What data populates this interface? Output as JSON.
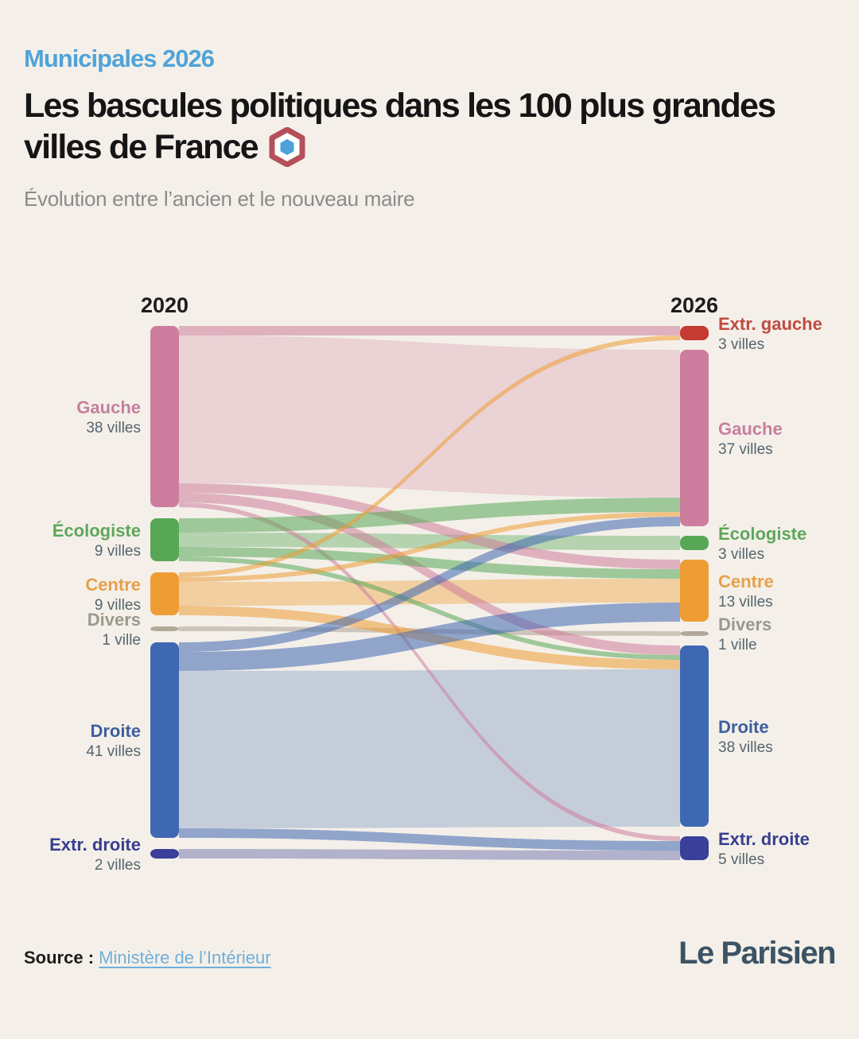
{
  "header": {
    "kicker": "Municipales 2026",
    "title_line1": "Les bascules politiques dans les 100 plus grandes",
    "title_line2": "villes de France",
    "subtitle": "Évolution entre l’ancien et le nouveau maire"
  },
  "footer": {
    "source_label": "Source :",
    "source_link": "Ministère de l’Intérieur",
    "brand": "Le Parisien"
  },
  "colors": {
    "background": "#f4f0e9",
    "kicker_blue": "#51a3d8",
    "title_black": "#151515",
    "subtitle_gray": "#8b8b8b",
    "count_gray": "#55656e",
    "year_label": "#1d1d1d",
    "link_blue": "#6fafda",
    "brand_slate": "#3c5365",
    "logo_hex_red": "#b5505a",
    "logo_hex_blue": "#4ba1d8"
  },
  "chart_data": {
    "type": "sankey",
    "title": "Les bascules politiques dans les 100 plus grandes villes de France",
    "subtitle": "Évolution entre l’ancien et le nouveau maire",
    "column_labels": [
      "2020",
      "2026"
    ],
    "unit": "villes",
    "left_nodes": [
      {
        "id": "gauche",
        "label": "Gauche",
        "count_label": "38 villes",
        "value": 38,
        "color": "#cd7d9d",
        "label_color": "#c5809e"
      },
      {
        "id": "ecologiste",
        "label": "Écologiste",
        "count_label": "9 villes",
        "value": 9,
        "color": "#57a757",
        "label_color": "#5ea75c"
      },
      {
        "id": "centre",
        "label": "Centre",
        "count_label": "9 villes",
        "value": 9,
        "color": "#ee9d35",
        "label_color": "#e8a04b"
      },
      {
        "id": "divers",
        "label": "Divers",
        "count_label": "1 ville",
        "value": 1,
        "color": "#b2a899",
        "label_color": "#9b988d"
      },
      {
        "id": "droite",
        "label": "Droite",
        "count_label": "41 villes",
        "value": 41,
        "color": "#3f68b3",
        "label_color": "#3e5f9e"
      },
      {
        "id": "extr_droite",
        "label": "Extr. droite",
        "count_label": "2 villes",
        "value": 2,
        "color": "#3a3f99",
        "label_color": "#383f8f"
      }
    ],
    "right_nodes": [
      {
        "id": "extr_gauche",
        "label": "Extr. gauche",
        "count_label": "3 villes",
        "value": 3,
        "color": "#c53a31",
        "label_color": "#c04a42"
      },
      {
        "id": "gauche",
        "label": "Gauche",
        "count_label": "37 villes",
        "value": 37,
        "color": "#cd7d9d",
        "label_color": "#c5809e"
      },
      {
        "id": "ecologiste",
        "label": "Écologiste",
        "count_label": "3 villes",
        "value": 3,
        "color": "#57a757",
        "label_color": "#5ea75c"
      },
      {
        "id": "centre",
        "label": "Centre",
        "count_label": "13 villes",
        "value": 13,
        "color": "#ee9d35",
        "label_color": "#e8a04b"
      },
      {
        "id": "divers",
        "label": "Divers",
        "count_label": "1 ville",
        "value": 1,
        "color": "#b2a899",
        "label_color": "#9b988d"
      },
      {
        "id": "droite",
        "label": "Droite",
        "count_label": "38 villes",
        "value": 38,
        "color": "#3f68b3",
        "label_color": "#3e5f9e"
      },
      {
        "id": "extr_droite",
        "label": "Extr. droite",
        "count_label": "5 villes",
        "value": 5,
        "color": "#3a3f99",
        "label_color": "#383f8f"
      }
    ],
    "flows": [
      {
        "source": "gauche",
        "target": "extr_gauche",
        "value": 2
      },
      {
        "source": "gauche",
        "target": "gauche",
        "value": 31
      },
      {
        "source": "gauche",
        "target": "centre",
        "value": 2
      },
      {
        "source": "gauche",
        "target": "droite",
        "value": 2
      },
      {
        "source": "gauche",
        "target": "extr_droite",
        "value": 1
      },
      {
        "source": "ecologiste",
        "target": "gauche",
        "value": 3
      },
      {
        "source": "ecologiste",
        "target": "ecologiste",
        "value": 3
      },
      {
        "source": "ecologiste",
        "target": "centre",
        "value": 2
      },
      {
        "source": "ecologiste",
        "target": "droite",
        "value": 1
      },
      {
        "source": "centre",
        "target": "extr_gauche",
        "value": 1
      },
      {
        "source": "centre",
        "target": "gauche",
        "value": 1
      },
      {
        "source": "centre",
        "target": "centre",
        "value": 5
      },
      {
        "source": "centre",
        "target": "droite",
        "value": 2
      },
      {
        "source": "divers",
        "target": "divers",
        "value": 1
      },
      {
        "source": "droite",
        "target": "gauche",
        "value": 2
      },
      {
        "source": "droite",
        "target": "centre",
        "value": 4
      },
      {
        "source": "droite",
        "target": "droite",
        "value": 33
      },
      {
        "source": "droite",
        "target": "extr_droite",
        "value": 2
      },
      {
        "source": "extr_droite",
        "target": "extr_droite",
        "value": 2
      }
    ]
  }
}
